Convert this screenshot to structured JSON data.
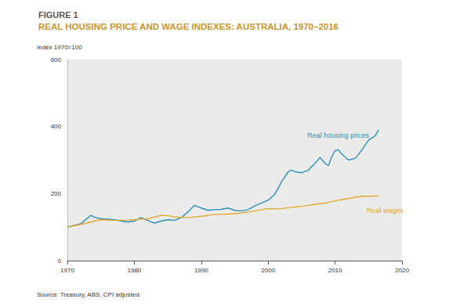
{
  "chart_data": {
    "type": "line",
    "title": "FIGURE 1",
    "subtitle": "REAL HOUSING PRICE AND WAGE INDEXES: AUSTRALIA, 1970–2016",
    "y_label": "Index 1970=100",
    "source": "Source: Treasury, ABS; CPI adjusted.",
    "x": [
      1970,
      1972,
      1973.5,
      1974,
      1975,
      1977,
      1979,
      1980,
      1981,
      1982,
      1983,
      1984,
      1985,
      1986,
      1987,
      1988,
      1989,
      1990,
      1991,
      1992,
      1993,
      1994,
      1995,
      1996,
      1997,
      1998,
      1999,
      2000,
      2001,
      2002,
      2003,
      2003.5,
      2004,
      2005,
      2006,
      2007,
      2007.75,
      2008.5,
      2009,
      2009.5,
      2010,
      2010.5,
      2011,
      2012,
      2013,
      2014,
      2015,
      2016,
      2016.5
    ],
    "series": [
      {
        "name": "Real housing prices",
        "color": "#2b8fb8",
        "values": [
          100,
          110,
          135,
          130,
          125,
          122,
          115,
          118,
          128,
          120,
          112,
          118,
          122,
          120,
          128,
          145,
          165,
          157,
          150,
          152,
          153,
          157,
          150,
          148,
          152,
          163,
          172,
          180,
          198,
          235,
          265,
          270,
          265,
          262,
          270,
          290,
          308,
          290,
          283,
          310,
          328,
          330,
          318,
          300,
          305,
          330,
          360,
          372,
          390
        ]
      },
      {
        "name": "Real wages",
        "color": "#e2a82e",
        "values": [
          100,
          108,
          115,
          118,
          122,
          120,
          121,
          122,
          124,
          125,
          130,
          135,
          134,
          130,
          129,
          128,
          130,
          132,
          135,
          138,
          138,
          139,
          140,
          142,
          145,
          148,
          152,
          155,
          154,
          155,
          158,
          159,
          160,
          162,
          165,
          168,
          170,
          171,
          174,
          176,
          178,
          180,
          182,
          185,
          189,
          192,
          192,
          193,
          193
        ]
      }
    ],
    "xlim": [
      1970,
      2020
    ],
    "xticks": [
      1970,
      1980,
      1990,
      2000,
      2010,
      2020
    ],
    "ylim": [
      0,
      600
    ],
    "yticks": [
      0,
      200,
      400,
      600
    ],
    "grid": false
  }
}
